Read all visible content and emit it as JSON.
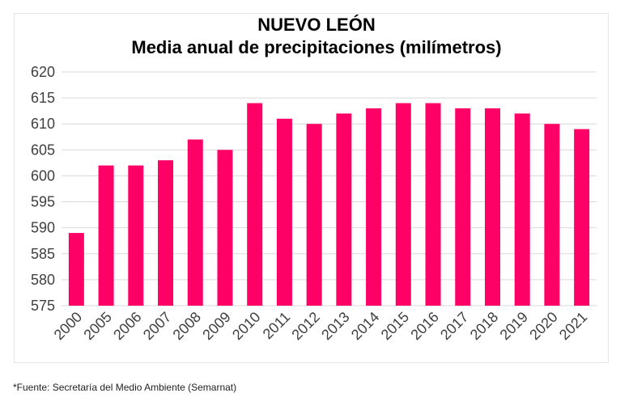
{
  "chart_data": {
    "type": "bar",
    "title": "NUEVO LEÓN",
    "subtitle": "Media anual de precipitaciones (milímetros)",
    "xlabel": "",
    "ylabel": "",
    "categories": [
      "2000",
      "2005",
      "2006",
      "2007",
      "2008",
      "2009",
      "2010",
      "2011",
      "2012",
      "2013",
      "2014",
      "2015",
      "2016",
      "2017",
      "2018",
      "2019",
      "2020",
      "2021"
    ],
    "values": [
      589,
      602,
      602,
      603,
      607,
      605,
      614,
      611,
      610,
      612,
      613,
      614,
      614,
      613,
      613,
      612,
      610,
      609
    ],
    "ylim": [
      575,
      620
    ],
    "yticks": [
      575,
      580,
      585,
      590,
      595,
      600,
      605,
      610,
      615,
      620
    ],
    "grid": true,
    "bar_color": "#ff0066",
    "grid_color": "#d9d9d9"
  },
  "footnote": "*Fuente: Secretaría del Medio Ambiente (Semarnat)"
}
